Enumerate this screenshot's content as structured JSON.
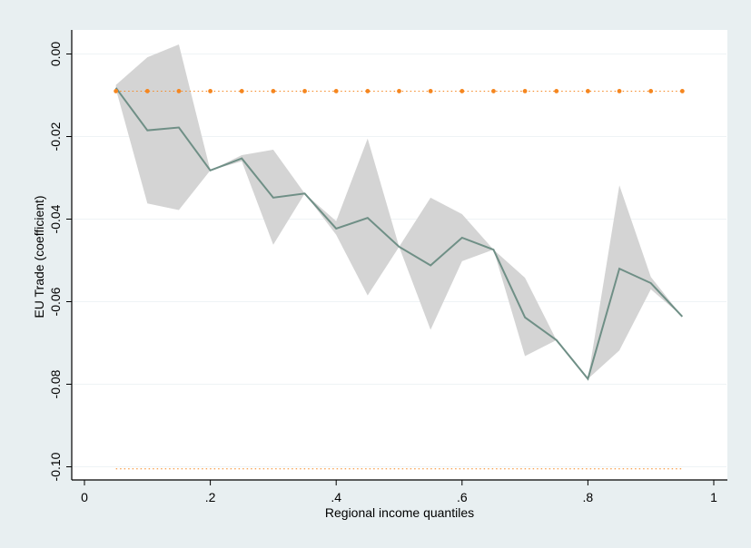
{
  "chart_data": {
    "type": "line",
    "title": "",
    "xlabel": "Regional income quantiles",
    "ylabel": "EU Trade (coefficient)",
    "xlim": [
      0,
      1
    ],
    "ylim": [
      -0.1,
      0.0
    ],
    "x_ticks": [
      {
        "value": 0,
        "label": "0"
      },
      {
        "value": 0.2,
        "label": ".2"
      },
      {
        "value": 0.4,
        "label": ".4"
      },
      {
        "value": 0.6,
        "label": ".6"
      },
      {
        "value": 0.8,
        "label": ".8"
      },
      {
        "value": 1,
        "label": "1"
      }
    ],
    "y_ticks": [
      {
        "value": 0.0,
        "label": "0.00"
      },
      {
        "value": -0.02,
        "label": "-0.02"
      },
      {
        "value": -0.04,
        "label": "-0.04"
      },
      {
        "value": -0.06,
        "label": "-0.06"
      },
      {
        "value": -0.08,
        "label": "-0.08"
      },
      {
        "value": -0.1,
        "label": "-0.10"
      }
    ],
    "grid": true,
    "x": [
      0.05,
      0.1,
      0.15,
      0.2,
      0.25,
      0.3,
      0.35,
      0.4,
      0.45,
      0.5,
      0.55,
      0.6,
      0.65,
      0.7,
      0.75,
      0.8,
      0.85,
      0.9,
      0.95
    ],
    "series": [
      {
        "type": "line",
        "color": "#6f8f86",
        "values": [
          -0.0082,
          -0.0185,
          -0.0178,
          -0.0282,
          -0.0253,
          -0.0348,
          -0.0338,
          -0.0423,
          -0.0397,
          -0.0467,
          -0.0512,
          -0.0445,
          -0.0474,
          -0.0638,
          -0.0693,
          -0.0787,
          -0.052,
          -0.0555,
          -0.0636
        ]
      },
      {
        "type": "band",
        "color": "#d4d4d4",
        "upper": [
          -0.0075,
          -0.0008,
          0.0023,
          -0.0282,
          -0.0245,
          -0.0232,
          -0.0338,
          -0.0405,
          -0.0205,
          -0.0467,
          -0.0348,
          -0.0388,
          -0.0474,
          -0.0542,
          -0.0693,
          -0.0787,
          -0.0318,
          -0.054,
          -0.0636
        ],
        "lower": [
          -0.0085,
          -0.0362,
          -0.0378,
          -0.0282,
          -0.026,
          -0.0462,
          -0.0338,
          -0.0438,
          -0.0585,
          -0.0467,
          -0.0668,
          -0.0502,
          -0.0474,
          -0.0732,
          -0.0693,
          -0.0787,
          -0.0718,
          -0.057,
          -0.0636
        ]
      },
      {
        "type": "dotted-markers",
        "color": "#f5861f",
        "values": [
          -0.009,
          -0.009,
          -0.009,
          -0.009,
          -0.009,
          -0.009,
          -0.009,
          -0.009,
          -0.009,
          -0.009,
          -0.009,
          -0.009,
          -0.009,
          -0.009,
          -0.009,
          -0.009,
          -0.009,
          -0.009,
          -0.009
        ]
      },
      {
        "type": "dotted-line",
        "color": "#f5861f",
        "values": [
          -0.1005,
          -0.1005,
          -0.1005,
          -0.1005,
          -0.1005,
          -0.1005,
          -0.1005,
          -0.1005,
          -0.1005,
          -0.1005,
          -0.1005,
          -0.1005,
          -0.1005,
          -0.1005,
          -0.1005,
          -0.1005,
          -0.1005,
          -0.1005,
          -0.1005
        ]
      }
    ],
    "colors": {
      "outer_background": "#e8eff1",
      "plot_background": "#ffffff",
      "gridline": "#eef3f5"
    }
  }
}
